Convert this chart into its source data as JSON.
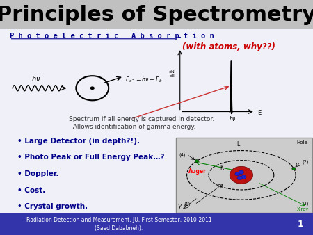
{
  "title": "Principles of Spectrometry",
  "title_fontsize": 22,
  "title_color": "#000000",
  "title_bg_color": "#C0C0C0",
  "slide_bg_color": "#F0F0F8",
  "subtitle_text": "P h o t o e l e c t r i c   A b s o r p t i o n",
  "subtitle_color": "#00008B",
  "with_atoms_text": "(with atoms, why??)",
  "with_atoms_color": "#CC0000",
  "spectrum_caption_line1": "Spectrum if all energy is captured in detector.",
  "spectrum_caption_line2": "  Allows identification of gamma energy.",
  "spectrum_caption_color": "#333333",
  "bullet_points": [
    "Large Detector (in depth?!).",
    "Photo Peak or Full Energy Peak…?",
    "Doppler.",
    "Cost.",
    "Crystal growth."
  ],
  "bullet_color": "#00008B",
  "footer_text": "Radiation Detection and Measurement, JU, First Semester, 2010-2011\n(Saed Dababneh).",
  "footer_bg_color": "#3333AA",
  "footer_text_color": "#FFFFFF",
  "footer_num": "1",
  "spectrum_ylabel": "dN\ndE"
}
